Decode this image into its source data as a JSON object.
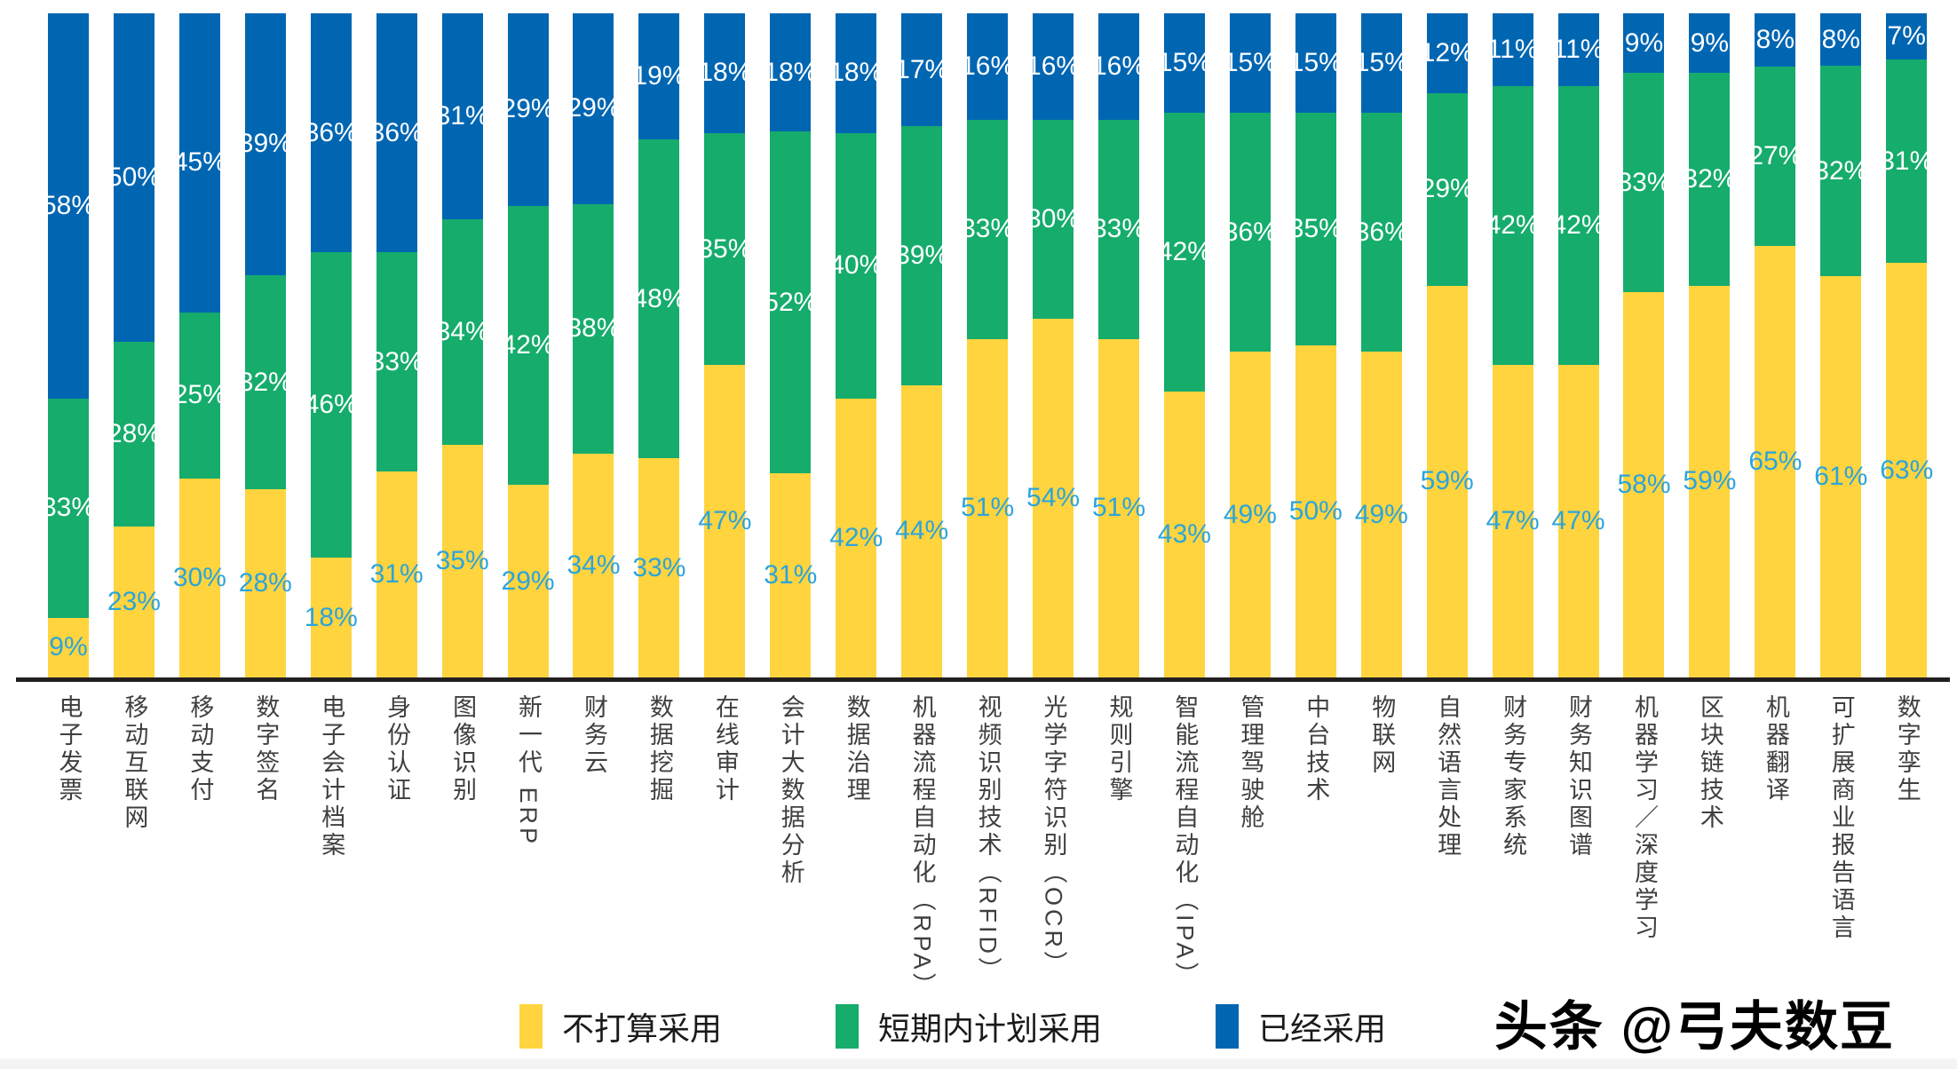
{
  "chart_data": {
    "type": "bar",
    "stacked": true,
    "normalized_to_100": true,
    "grid": false,
    "legend_position": "bottom",
    "value_suffix": "%",
    "categories": [
      "电子发票",
      "移动互联网",
      "移动支付",
      "数字签名",
      "电子会计档案",
      "身份认证",
      "图像识别",
      "新一代 ERP",
      "财务云",
      "数据挖掘",
      "在线审计",
      "会计大数据分析",
      "数据治理",
      "机器流程自动化（RPA）",
      "视频识别技术（RFID）",
      "光学字符识别（OCR）",
      "规则引擎",
      "智能流程自动化（IPA）",
      "管理驾驶舱",
      "中台技术",
      "物联网",
      "自然语言处理",
      "财务专家系统",
      "财务知识图谱",
      "机器学习／深度学习",
      "区块链技术",
      "机器翻译",
      "可扩展商业报告语言",
      "数字孪生"
    ],
    "series": [
      {
        "name": "不打算采用",
        "color": "#FFD43E",
        "label_color": "#2BA4DC",
        "values": [
          9,
          23,
          30,
          28,
          18,
          31,
          35,
          29,
          34,
          33,
          47,
          31,
          42,
          44,
          51,
          54,
          51,
          43,
          49,
          50,
          49,
          59,
          47,
          47,
          58,
          59,
          65,
          61,
          63
        ]
      },
      {
        "name": "短期内计划采用",
        "color": "#16AC6C",
        "label_color": "#FFFFFF",
        "values": [
          33,
          28,
          25,
          32,
          46,
          33,
          34,
          42,
          38,
          48,
          35,
          52,
          40,
          39,
          33,
          30,
          33,
          42,
          36,
          35,
          36,
          29,
          42,
          42,
          33,
          32,
          27,
          32,
          31
        ]
      },
      {
        "name": "已经采用",
        "color": "#0066B2",
        "label_color": "#FFFFFF",
        "values": [
          58,
          50,
          45,
          39,
          36,
          36,
          31,
          29,
          29,
          19,
          18,
          18,
          18,
          17,
          16,
          16,
          16,
          15,
          15,
          15,
          15,
          12,
          11,
          11,
          9,
          9,
          8,
          8,
          7
        ]
      }
    ]
  },
  "axis": {
    "color": "#231f20"
  },
  "watermark": "头条 @弓夫数豆"
}
